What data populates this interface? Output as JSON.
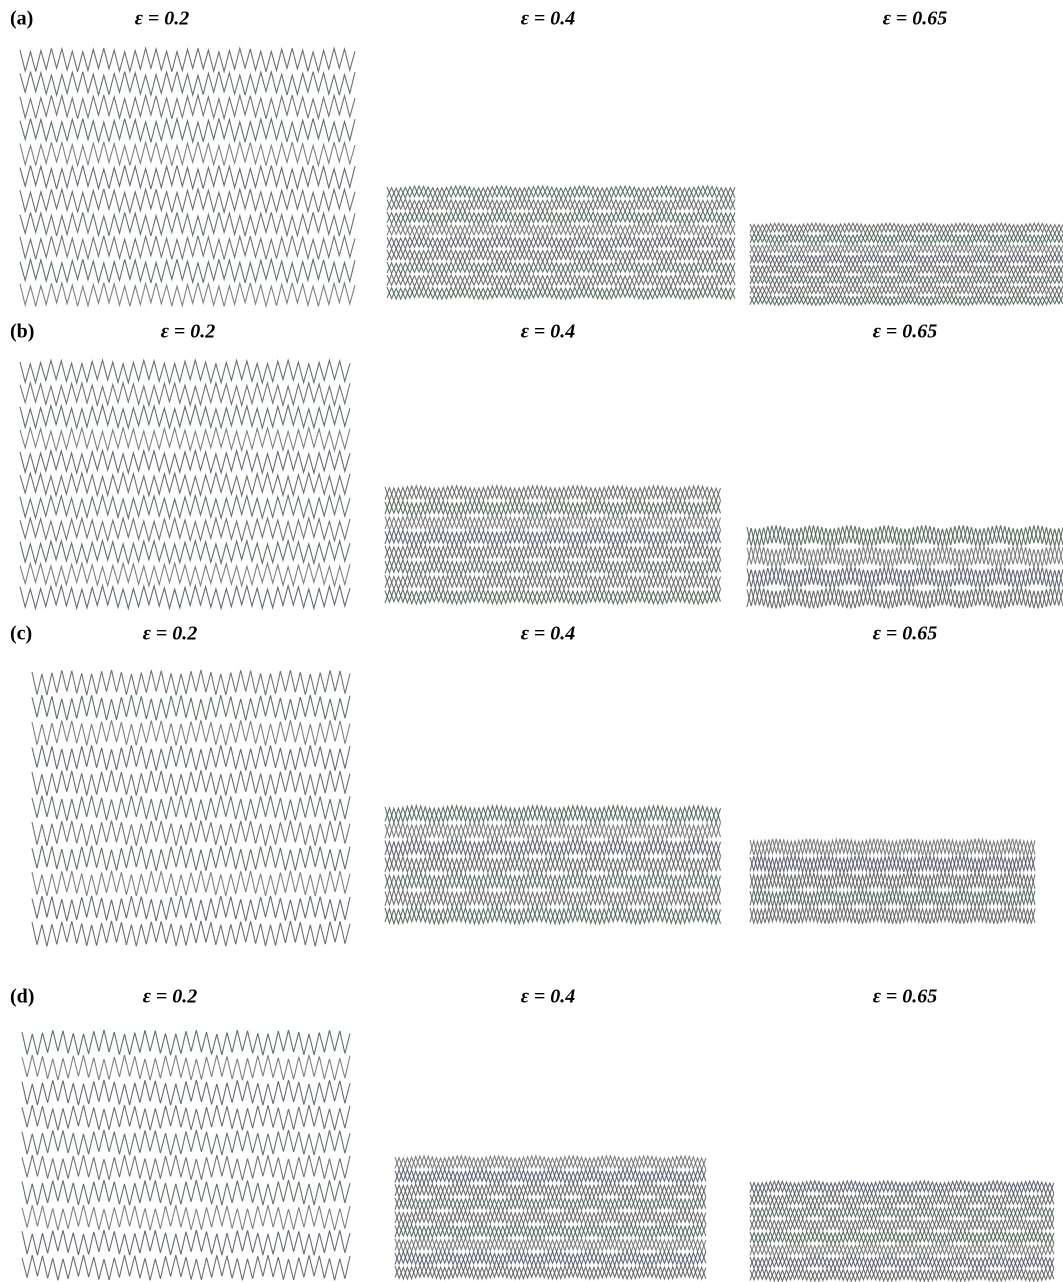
{
  "figure": {
    "rows": [
      {
        "label": "(a)",
        "panels": [
          {
            "caption": "ε = 0.2"
          },
          {
            "caption": "ε = 0.4"
          },
          {
            "caption": "ε = 0.65"
          }
        ]
      },
      {
        "label": "(b)",
        "panels": [
          {
            "caption": "ε = 0.2"
          },
          {
            "caption": "ε = 0.4"
          },
          {
            "caption": "ε = 0.65"
          }
        ]
      },
      {
        "label": "(c)",
        "panels": [
          {
            "caption": "ε = 0.2"
          },
          {
            "caption": "ε = 0.4"
          },
          {
            "caption": "ε = 0.65"
          }
        ]
      },
      {
        "label": "(d)",
        "panels": [
          {
            "caption": "ε = 0.2"
          },
          {
            "caption": "ε = 0.4"
          },
          {
            "caption": "ε = 0.65"
          }
        ]
      }
    ]
  }
}
